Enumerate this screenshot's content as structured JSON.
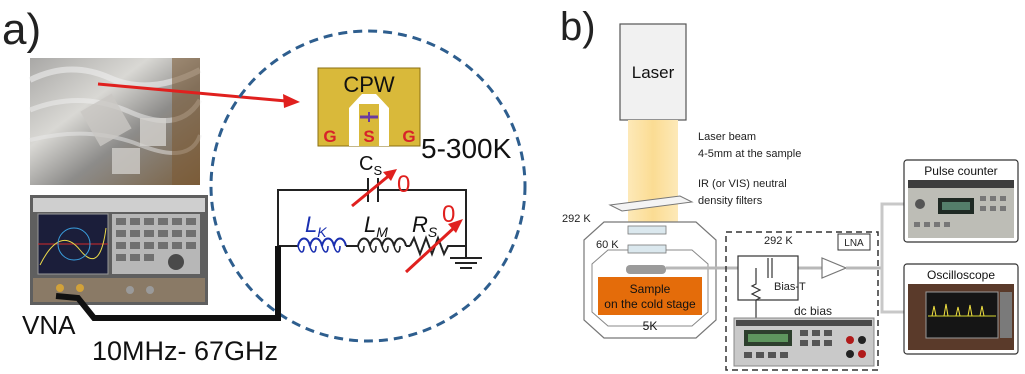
{
  "panel_a": {
    "label": "a)",
    "cpw_title": "CPW",
    "pad_g_left": "G",
    "pad_s": "S",
    "pad_g_right": "G",
    "temp_range": "5-300K",
    "cap_label": "C",
    "cap_sub": "S",
    "cap_value": "0",
    "lk_label": "L",
    "lk_sub": "K",
    "lm_label": "L",
    "lm_sub": "M",
    "rs_label": "R",
    "rs_sub": "S",
    "rs_value": "0",
    "vna_label": "VNA",
    "freq_range": "10MHz- 67GHz"
  },
  "panel_b": {
    "label": "b)",
    "laser": "Laser",
    "laser_beam": "Laser beam",
    "beam_size": "4-5mm at the sample",
    "filters_line1": "IR (or VIS) neutral",
    "filters_line2": "density filters",
    "temp_292_outer": "292 K",
    "temp_60": "60 K",
    "sample_line1": "Sample",
    "sample_line2": "on the cold stage",
    "temp_5": "5K",
    "temp_292_inner": "292 K",
    "lna": "LNA",
    "bias_t": "Bias-T",
    "dc_bias": "dc bias",
    "pulse_counter": "Pulse counter",
    "oscilloscope": "Oscilloscope"
  },
  "colors": {
    "red_arrow": "#e0201e",
    "dashed_circle": "#2e5e8e",
    "cpw_gold": "#d9b93a",
    "pad_red": "#d8232a",
    "lk_blue": "#1a2fb0",
    "laser_beam": "#fbe3a3",
    "sample_orange": "#e46c0a"
  }
}
